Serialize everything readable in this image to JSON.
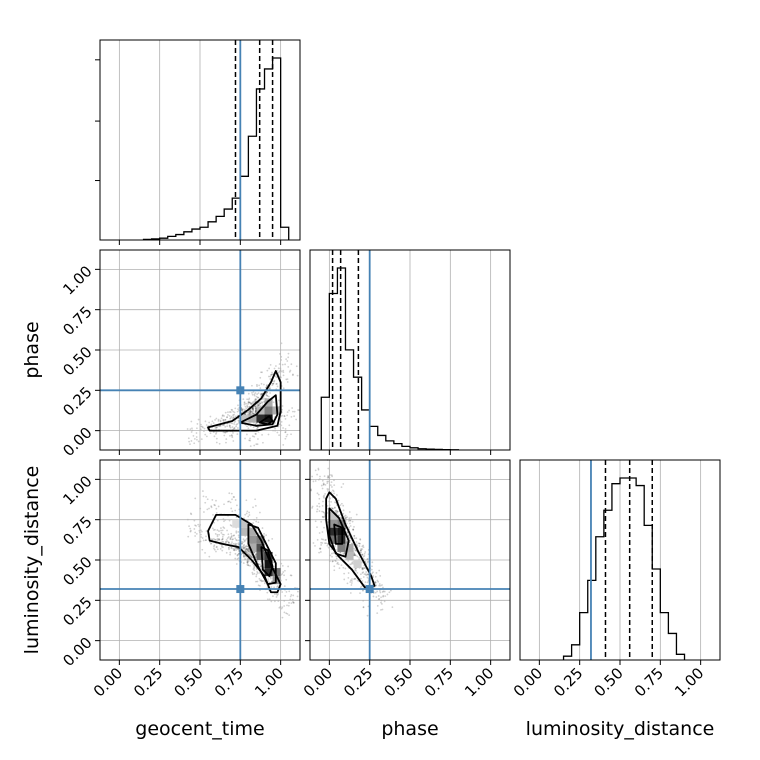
{
  "chart_data": {
    "type": "corner",
    "parameters": [
      "geocent_time",
      "phase",
      "luminosity_distance"
    ],
    "axis_labels": {
      "geocent_time": "geocent_time",
      "phase": "phase",
      "luminosity_distance": "luminosity_distance"
    },
    "axis_range": [
      -0.12,
      1.12
    ],
    "ticks": [
      0.0,
      0.25,
      0.5,
      0.75,
      1.0
    ],
    "tick_labels": [
      "0.00",
      "0.25",
      "0.50",
      "0.75",
      "1.00"
    ],
    "grid": true,
    "truths": {
      "geocent_time": 0.75,
      "phase": 0.25,
      "luminosity_distance": 0.32
    },
    "colors": {
      "truth": "#4682b4",
      "hist": "#000000",
      "grid": "#b0b0b0"
    },
    "marginals": {
      "geocent_time": {
        "bin_edges": [
          0.15,
          0.2,
          0.25,
          0.3,
          0.35,
          0.4,
          0.45,
          0.5,
          0.55,
          0.6,
          0.65,
          0.7,
          0.75,
          0.8,
          0.85,
          0.9,
          0.95,
          1.0,
          1.05
        ],
        "heights": [
          0.003,
          0.006,
          0.01,
          0.02,
          0.03,
          0.045,
          0.06,
          0.07,
          0.1,
          0.13,
          0.17,
          0.23,
          0.35,
          0.57,
          0.83,
          0.94,
          1.0,
          0.07
        ],
        "quantiles": [
          0.72,
          0.87,
          0.95
        ]
      },
      "phase": {
        "bin_edges": [
          -0.05,
          0.0,
          0.05,
          0.1,
          0.15,
          0.2,
          0.25,
          0.3,
          0.35,
          0.4,
          0.45,
          0.5,
          0.55,
          0.6,
          0.65,
          0.7,
          0.75,
          0.8
        ],
        "heights": [
          0.29,
          0.86,
          1.0,
          0.55,
          0.4,
          0.22,
          0.13,
          0.08,
          0.05,
          0.035,
          0.02,
          0.012,
          0.007,
          0.005,
          0.003,
          0.002,
          0.001
        ],
        "quantiles": [
          0.02,
          0.07,
          0.18
        ]
      },
      "luminosity_distance": {
        "bin_edges": [
          0.15,
          0.2,
          0.25,
          0.3,
          0.35,
          0.4,
          0.45,
          0.5,
          0.55,
          0.6,
          0.65,
          0.7,
          0.75,
          0.8,
          0.85,
          0.9
        ],
        "heights": [
          0.02,
          0.08,
          0.25,
          0.42,
          0.65,
          0.79,
          0.93,
          0.96,
          0.96,
          0.92,
          0.71,
          0.48,
          0.25,
          0.14,
          0.03
        ],
        "quantiles": [
          0.41,
          0.56,
          0.7
        ]
      }
    },
    "pairs": [
      {
        "x": "geocent_time",
        "y": "phase",
        "contours": [
          [
            [
              0.55,
              0.02
            ],
            [
              0.7,
              0.06
            ],
            [
              0.8,
              0.13
            ],
            [
              0.88,
              0.2
            ],
            [
              0.94,
              0.3
            ],
            [
              0.97,
              0.37
            ],
            [
              1.0,
              0.3
            ],
            [
              1.0,
              0.12
            ],
            [
              0.98,
              0.03
            ],
            [
              0.85,
              0.0
            ],
            [
              0.7,
              0.0
            ],
            [
              0.56,
              0.0
            ]
          ],
          [
            [
              0.75,
              0.05
            ],
            [
              0.85,
              0.1
            ],
            [
              0.92,
              0.18
            ],
            [
              0.97,
              0.22
            ],
            [
              0.98,
              0.1
            ],
            [
              0.95,
              0.04
            ],
            [
              0.85,
              0.03
            ]
          ],
          [
            [
              0.87,
              0.05
            ],
            [
              0.93,
              0.09
            ],
            [
              0.95,
              0.06
            ],
            [
              0.92,
              0.04
            ]
          ]
        ],
        "density_cells": [
          {
            "x": 0.825,
            "y": 0.075,
            "w": 0.35
          },
          {
            "x": 0.875,
            "y": 0.075,
            "w": 0.9
          },
          {
            "x": 0.925,
            "y": 0.075,
            "w": 1.0
          },
          {
            "x": 0.875,
            "y": 0.125,
            "w": 0.3
          },
          {
            "x": 0.925,
            "y": 0.125,
            "w": 0.55
          },
          {
            "x": 0.925,
            "y": 0.175,
            "w": 0.35
          },
          {
            "x": 0.975,
            "y": 0.125,
            "w": 0.35
          },
          {
            "x": 0.775,
            "y": 0.075,
            "w": 0.25
          }
        ]
      },
      {
        "x": "geocent_time",
        "y": "luminosity_distance",
        "contours": [
          [
            [
              0.55,
              0.68
            ],
            [
              0.6,
              0.78
            ],
            [
              0.72,
              0.78
            ],
            [
              0.82,
              0.72
            ],
            [
              0.88,
              0.62
            ],
            [
              0.95,
              0.45
            ],
            [
              1.0,
              0.35
            ],
            [
              0.98,
              0.3
            ],
            [
              0.94,
              0.3
            ],
            [
              0.9,
              0.4
            ],
            [
              0.82,
              0.5
            ],
            [
              0.74,
              0.58
            ],
            [
              0.64,
              0.6
            ],
            [
              0.56,
              0.62
            ]
          ],
          [
            [
              0.8,
              0.72
            ],
            [
              0.86,
              0.7
            ],
            [
              0.9,
              0.62
            ],
            [
              0.97,
              0.48
            ],
            [
              0.97,
              0.36
            ],
            [
              0.92,
              0.35
            ],
            [
              0.86,
              0.46
            ],
            [
              0.8,
              0.6
            ]
          ],
          [
            [
              0.88,
              0.58
            ],
            [
              0.92,
              0.56
            ],
            [
              0.95,
              0.46
            ],
            [
              0.93,
              0.4
            ],
            [
              0.89,
              0.44
            ]
          ]
        ],
        "density_cells": [
          {
            "x": 0.725,
            "y": 0.725,
            "w": 0.15
          },
          {
            "x": 0.775,
            "y": 0.725,
            "w": 0.25
          },
          {
            "x": 0.775,
            "y": 0.675,
            "w": 0.3
          },
          {
            "x": 0.825,
            "y": 0.675,
            "w": 0.35
          },
          {
            "x": 0.825,
            "y": 0.625,
            "w": 0.45
          },
          {
            "x": 0.875,
            "y": 0.625,
            "w": 0.55
          },
          {
            "x": 0.875,
            "y": 0.575,
            "w": 0.75
          },
          {
            "x": 0.925,
            "y": 0.525,
            "w": 0.85
          },
          {
            "x": 0.925,
            "y": 0.475,
            "w": 1.0
          },
          {
            "x": 0.925,
            "y": 0.425,
            "w": 0.9
          },
          {
            "x": 0.975,
            "y": 0.425,
            "w": 0.6
          },
          {
            "x": 0.875,
            "y": 0.525,
            "w": 0.65
          },
          {
            "x": 0.825,
            "y": 0.575,
            "w": 0.35
          },
          {
            "x": 0.975,
            "y": 0.375,
            "w": 0.45
          }
        ]
      },
      {
        "x": "phase",
        "y": "luminosity_distance",
        "contours": [
          [
            [
              -0.02,
              0.88
            ],
            [
              0.0,
              0.92
            ],
            [
              0.04,
              0.88
            ],
            [
              0.1,
              0.72
            ],
            [
              0.18,
              0.55
            ],
            [
              0.26,
              0.4
            ],
            [
              0.28,
              0.34
            ],
            [
              0.22,
              0.33
            ],
            [
              0.14,
              0.44
            ],
            [
              0.06,
              0.52
            ],
            [
              0.0,
              0.6
            ],
            [
              -0.02,
              0.75
            ]
          ],
          [
            [
              0.0,
              0.82
            ],
            [
              0.06,
              0.76
            ],
            [
              0.12,
              0.62
            ],
            [
              0.1,
              0.52
            ],
            [
              0.04,
              0.54
            ],
            [
              0.0,
              0.65
            ]
          ],
          [
            [
              0.03,
              0.72
            ],
            [
              0.08,
              0.7
            ],
            [
              0.08,
              0.6
            ],
            [
              0.04,
              0.6
            ]
          ]
        ],
        "density_cells": [
          {
            "x": 0.025,
            "y": 0.775,
            "w": 0.25
          },
          {
            "x": 0.025,
            "y": 0.725,
            "w": 0.45
          },
          {
            "x": 0.075,
            "y": 0.725,
            "w": 0.55
          },
          {
            "x": 0.025,
            "y": 0.675,
            "w": 0.9
          },
          {
            "x": 0.075,
            "y": 0.675,
            "w": 1.0
          },
          {
            "x": 0.075,
            "y": 0.625,
            "w": 0.9
          },
          {
            "x": 0.025,
            "y": 0.625,
            "w": 0.6
          },
          {
            "x": 0.075,
            "y": 0.575,
            "w": 0.55
          },
          {
            "x": 0.125,
            "y": 0.575,
            "w": 0.35
          },
          {
            "x": 0.125,
            "y": 0.525,
            "w": 0.3
          },
          {
            "x": 0.175,
            "y": 0.475,
            "w": 0.2
          }
        ]
      }
    ]
  }
}
